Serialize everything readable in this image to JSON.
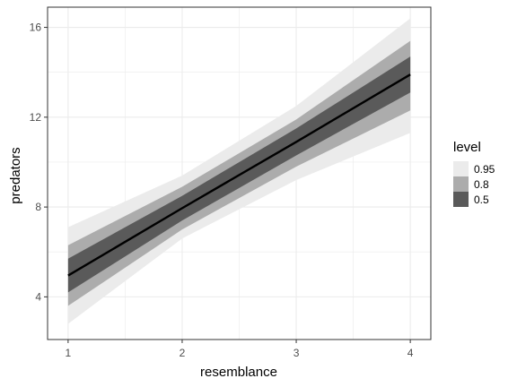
{
  "chart_data": {
    "type": "line",
    "xlabel": "resemblance",
    "ylabel": "predators",
    "xlim": [
      0.82,
      4.18
    ],
    "ylim": [
      2.1,
      16.9
    ],
    "x_ticks": [
      1,
      2,
      3,
      4
    ],
    "y_ticks": [
      4,
      8,
      12,
      16
    ],
    "grid": true,
    "legend_position": "right",
    "legend_title": "level",
    "x": [
      1,
      2,
      3,
      4
    ],
    "line": {
      "values": [
        4.95,
        7.95,
        10.9,
        13.9
      ],
      "color": "#000000"
    },
    "bands": [
      {
        "name": "0.95",
        "color": "#ebebeb",
        "lower": [
          2.8,
          6.6,
          9.2,
          11.3
        ],
        "upper": [
          7.1,
          9.4,
          12.5,
          16.4
        ]
      },
      {
        "name": "0.8",
        "color": "#acacac",
        "lower": [
          3.6,
          7.0,
          9.8,
          12.3
        ],
        "upper": [
          6.3,
          8.9,
          11.9,
          15.4
        ]
      },
      {
        "name": "0.5",
        "color": "#5a5a5a",
        "lower": [
          4.2,
          7.4,
          10.3,
          13.1
        ],
        "upper": [
          5.7,
          8.5,
          11.5,
          14.7
        ]
      }
    ]
  }
}
